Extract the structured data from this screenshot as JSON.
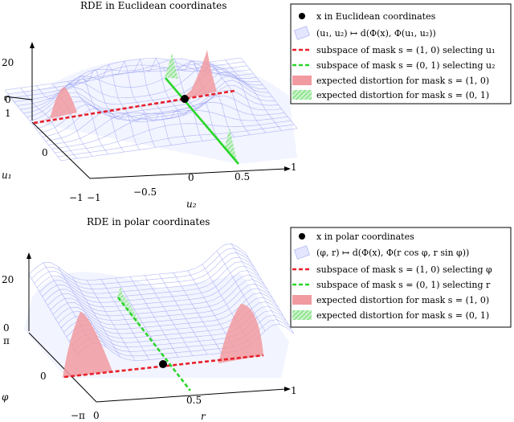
{
  "panels": [
    {
      "title": "RDE in Euclidean coordinates",
      "z_ticks": [
        "20",
        "0"
      ],
      "left_axis": {
        "label": "u₁",
        "ticks": [
          "1",
          "0",
          "−1"
        ]
      },
      "bottom_axis": {
        "label": "u₂",
        "ticks": [
          "−1",
          "−0.5",
          "0",
          "0.5",
          "1"
        ]
      },
      "legend": [
        {
          "key": "point",
          "text": "x in Euclidean coordinates"
        },
        {
          "key": "surface",
          "text": "(u₁, u₂) ↦ d(Φ(x), Φ(u₁, u₂))"
        },
        {
          "key": "red-dash",
          "text": "subspace of mask s = (1, 0) selecting u₁"
        },
        {
          "key": "green-dash",
          "text": "subspace of mask s = (0, 1) selecting u₂"
        },
        {
          "key": "red-fill",
          "text": "expected distortion for mask s = (1, 0)"
        },
        {
          "key": "green-fill",
          "text": "expected distortion for mask s = (0, 1)"
        }
      ]
    },
    {
      "title": "RDE in polar coordinates",
      "z_ticks": [
        "20",
        "0"
      ],
      "left_axis": {
        "label": "φ",
        "ticks": [
          "π",
          "0",
          "−π"
        ]
      },
      "bottom_axis": {
        "label": "r",
        "ticks": [
          "0",
          "0.5",
          "1"
        ]
      },
      "legend": [
        {
          "key": "point",
          "text": "x in polar coordinates"
        },
        {
          "key": "surface",
          "text": "(φ, r) ↦ d(Φ(x), Φ(r cos φ, r sin φ))"
        },
        {
          "key": "red-dash",
          "text": "subspace of mask s = (1, 0) selecting φ"
        },
        {
          "key": "green-dash",
          "text": "subspace of mask s = (0, 1) selecting r"
        },
        {
          "key": "red-fill",
          "text": "expected distortion for mask s = (1, 0)"
        },
        {
          "key": "green-fill",
          "text": "expected distortion for mask s = (0, 1)"
        }
      ]
    }
  ],
  "colors": {
    "red": "#e8202a",
    "red_fill": "#f19aa0",
    "green": "#29d629",
    "green_fill": "#a8e8a8",
    "mesh": "#9aa2f2",
    "mesh_fill": "#e8ebff",
    "point": "#000000"
  }
}
